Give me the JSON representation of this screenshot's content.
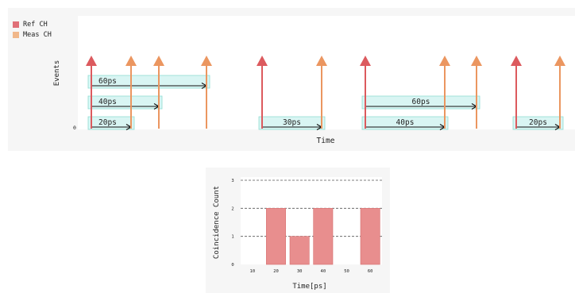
{
  "colors": {
    "ref": "#dc5a5e",
    "meas": "#eb9660",
    "window_fill": "#d9f5f3",
    "window_stroke": "#8fdcd2",
    "bar": "#e88e8e",
    "bar_stroke": "#d66f6f"
  },
  "timeline": {
    "legend": [
      {
        "label": "Ref CH",
        "color": "#e07078"
      },
      {
        "label": "Meas CH",
        "color": "#f0b78a"
      }
    ],
    "ylabel": "Events",
    "xlabel": "Time",
    "y_tick": "0",
    "ref_events": [
      0,
      215,
      345,
      535
    ],
    "meas_events": [
      50,
      85,
      145,
      290,
      445,
      485,
      590
    ],
    "windows": [
      {
        "start": 0,
        "end": 145,
        "row": 3,
        "label": "60ps"
      },
      {
        "start": 0,
        "end": 85,
        "row": 2,
        "label": "40ps"
      },
      {
        "start": 0,
        "end": 50,
        "row": 1,
        "label": "20ps"
      },
      {
        "start": 215,
        "end": 290,
        "row": 1,
        "label": "30ps"
      },
      {
        "start": 345,
        "end": 485,
        "row": 2,
        "label": "60ps"
      },
      {
        "start": 345,
        "end": 445,
        "row": 1,
        "label": "40ps"
      },
      {
        "start": 535,
        "end": 590,
        "row": 1,
        "label": "20ps"
      }
    ]
  },
  "chart_data": {
    "type": "bar",
    "categories": [
      "10",
      "20",
      "30",
      "40",
      "50",
      "60"
    ],
    "values": [
      0,
      2,
      1,
      2,
      0,
      2
    ],
    "ylabel": "Coincidence Count",
    "xlabel": "Time[ps]",
    "ylim": [
      0,
      3
    ],
    "yticks": [
      "0",
      "1",
      "2",
      "3"
    ],
    "grid": "dashed-horizontal"
  }
}
